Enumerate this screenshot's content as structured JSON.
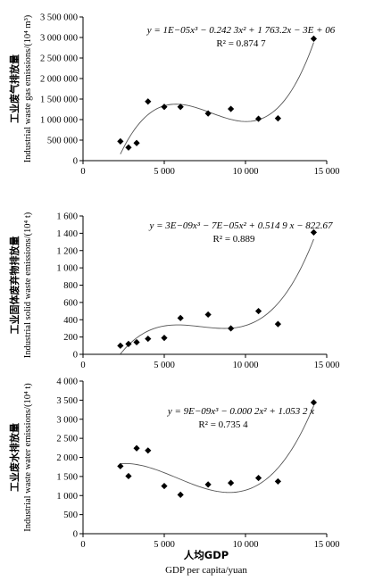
{
  "chart_data": [
    {
      "type": "scatter",
      "ylabel_cn": "工业废气排放量",
      "ylabel_en": "Industrial waste gas emissions/(10⁴ m³)",
      "equation": "y = 1E−05x³ − 0.242 3x² + 1 763.2x − 3E + 06",
      "r2": "R² = 0.874 7",
      "xlim": [
        0,
        15000
      ],
      "ylim": [
        0,
        3500000
      ],
      "yticks": [
        0,
        500000,
        1000000,
        1500000,
        2000000,
        2500000,
        3000000,
        3500000
      ],
      "ytick_labels": [
        "0",
        "500 000",
        "1 000 000",
        "1 500 000",
        "2 000 000",
        "2 500 000",
        "3 000 000",
        "3 500 000"
      ],
      "xticks": [
        0,
        5000,
        10000,
        15000
      ],
      "xtick_labels": [
        "0",
        "5 000",
        "10 000",
        "15 000"
      ],
      "trendline": "cubic polynomial",
      "x": [
        2300,
        2800,
        3300,
        4000,
        5000,
        6000,
        7700,
        9100,
        10800,
        12000,
        14200
      ],
      "y": [
        470000,
        320000,
        430000,
        1440000,
        1310000,
        1310000,
        1150000,
        1260000,
        1020000,
        1030000,
        2970000
      ]
    },
    {
      "type": "scatter",
      "ylabel_cn": "工业固体废弃物排放量",
      "ylabel_en": "Industrial solid waste emissions/(10⁴ t)",
      "equation": "y = 3E−09x³ − 7E−05x² + 0.514 9 x − 822.67",
      "r2": "R² = 0.889",
      "xlim": [
        0,
        15000
      ],
      "ylim": [
        0,
        1600
      ],
      "yticks": [
        0,
        200,
        400,
        600,
        800,
        1000,
        1200,
        1400,
        1600
      ],
      "ytick_labels": [
        "0",
        "200",
        "400",
        "600",
        "800",
        "1 000",
        "1 200",
        "1 400",
        "1 600"
      ],
      "xticks": [
        0,
        5000,
        10000,
        15000
      ],
      "xtick_labels": [
        "0",
        "5 000",
        "10 000",
        "15 000"
      ],
      "trendline": "cubic polynomial",
      "x": [
        2300,
        2800,
        3300,
        4000,
        5000,
        6000,
        7700,
        9100,
        10800,
        12000,
        14200
      ],
      "y": [
        100,
        120,
        140,
        180,
        190,
        420,
        460,
        300,
        500,
        350,
        1410
      ]
    },
    {
      "type": "scatter",
      "ylabel_cn": "工业废水排放量",
      "ylabel_en": "Industrial waste water emissions/(10⁴ t)",
      "equation": "y = 9E−09x³ − 0.000 2x² + 1.053 2 x",
      "r2": "R² = 0.735 4",
      "xlim": [
        0,
        15000
      ],
      "ylim": [
        0,
        4000
      ],
      "yticks": [
        0,
        500,
        1000,
        1500,
        2000,
        2500,
        3000,
        3500,
        4000
      ],
      "ytick_labels": [
        "0",
        "500",
        "1 000",
        "1 500",
        "2 000",
        "2 500",
        "3 000",
        "3 500",
        "4 000"
      ],
      "xticks": [
        0,
        5000,
        10000,
        15000
      ],
      "xtick_labels": [
        "0",
        "5 000",
        "10 000",
        "15 000"
      ],
      "trendline": "cubic polynomial",
      "x": [
        2300,
        2800,
        3300,
        4000,
        5000,
        6000,
        7700,
        9100,
        10800,
        12000,
        14200
      ],
      "y": [
        1770,
        1510,
        2240,
        2180,
        1250,
        1020,
        1290,
        1330,
        1460,
        1370,
        3440
      ]
    }
  ],
  "xlabel_cn": "人均GDP",
  "xlabel_en": "GDP per capita/yuan"
}
